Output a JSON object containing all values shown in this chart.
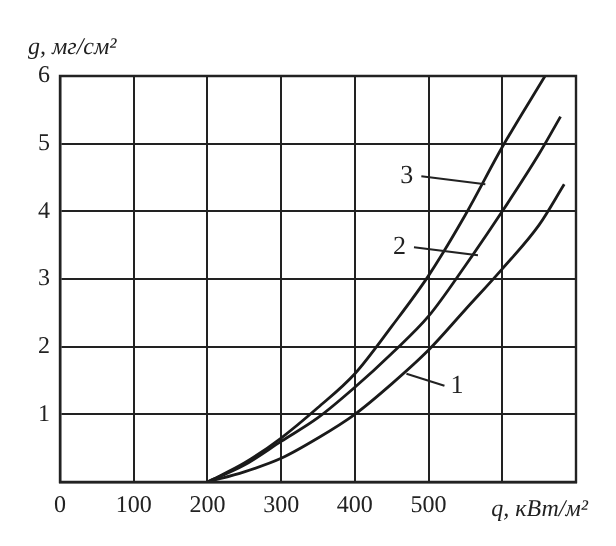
{
  "chart_data": {
    "type": "line",
    "xlabel": "q, кВт/м²",
    "ylabel": "g, мг/см²",
    "xlim": [
      0,
      700
    ],
    "xticks": [
      0,
      100,
      200,
      300,
      400,
      500,
      {
        "value": 600,
        "label": null
      },
      {
        "value": 700,
        "label": null
      }
    ],
    "ylim": [
      0,
      6
    ],
    "yticks": [
      {
        "value": 0,
        "label": null
      },
      1,
      2,
      3,
      4,
      5,
      6
    ],
    "grid": true,
    "legend": false,
    "marker": "none",
    "line_style": "solid",
    "series": [
      {
        "color": "#1a1a1a",
        "x": [
          200,
          250,
          300,
          350,
          400,
          450,
          500,
          550,
          600,
          650,
          684
        ],
        "values": [
          0,
          0.15,
          0.35,
          0.65,
          1.0,
          1.45,
          1.95,
          2.55,
          3.15,
          3.8,
          4.4
        ]
      },
      {
        "color": "#1a1a1a",
        "x": [
          200,
          250,
          300,
          350,
          400,
          450,
          500,
          550,
          600,
          650,
          679
        ],
        "values": [
          0,
          0.25,
          0.6,
          0.95,
          1.4,
          1.9,
          2.45,
          3.2,
          4.0,
          4.85,
          5.4
        ]
      },
      {
        "color": "#1a1a1a",
        "x": [
          200,
          250,
          300,
          350,
          400,
          450,
          500,
          550,
          600,
          658
        ],
        "values": [
          0,
          0.28,
          0.65,
          1.1,
          1.6,
          2.3,
          3.05,
          3.95,
          4.95,
          6.0
        ]
      }
    ],
    "annotations": [
      {
        "text": "1",
        "x": 470,
        "y": 1.6
      },
      {
        "text": "2",
        "x": 567,
        "y": 3.35
      },
      {
        "text": "3",
        "x": 577,
        "y": 4.4
      }
    ]
  }
}
